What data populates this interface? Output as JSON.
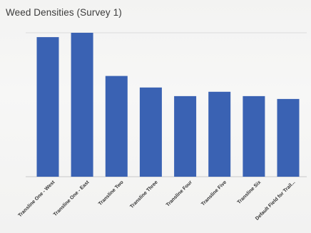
{
  "chart_data": {
    "type": "bar",
    "title": "Weed Densities (Survey 1)",
    "xlabel": "",
    "ylabel": "",
    "categories": [
      "Transline One - West",
      "Transline One - East",
      "Transline Two",
      "Transline Three",
      "Transline Four",
      "Transline Five",
      "Transline Six",
      "Default Field for Trail..."
    ],
    "values": [
      97,
      100,
      70,
      62,
      56,
      59,
      56,
      54
    ],
    "ylim": [
      0,
      100
    ],
    "grid": true,
    "legend": "none",
    "colors": {
      "bar": "#3a62b3",
      "grid": "#dcdcdc",
      "baseline": "#c9c9c9",
      "background": "#f4f4f3",
      "title": "#3b3b3b"
    }
  }
}
